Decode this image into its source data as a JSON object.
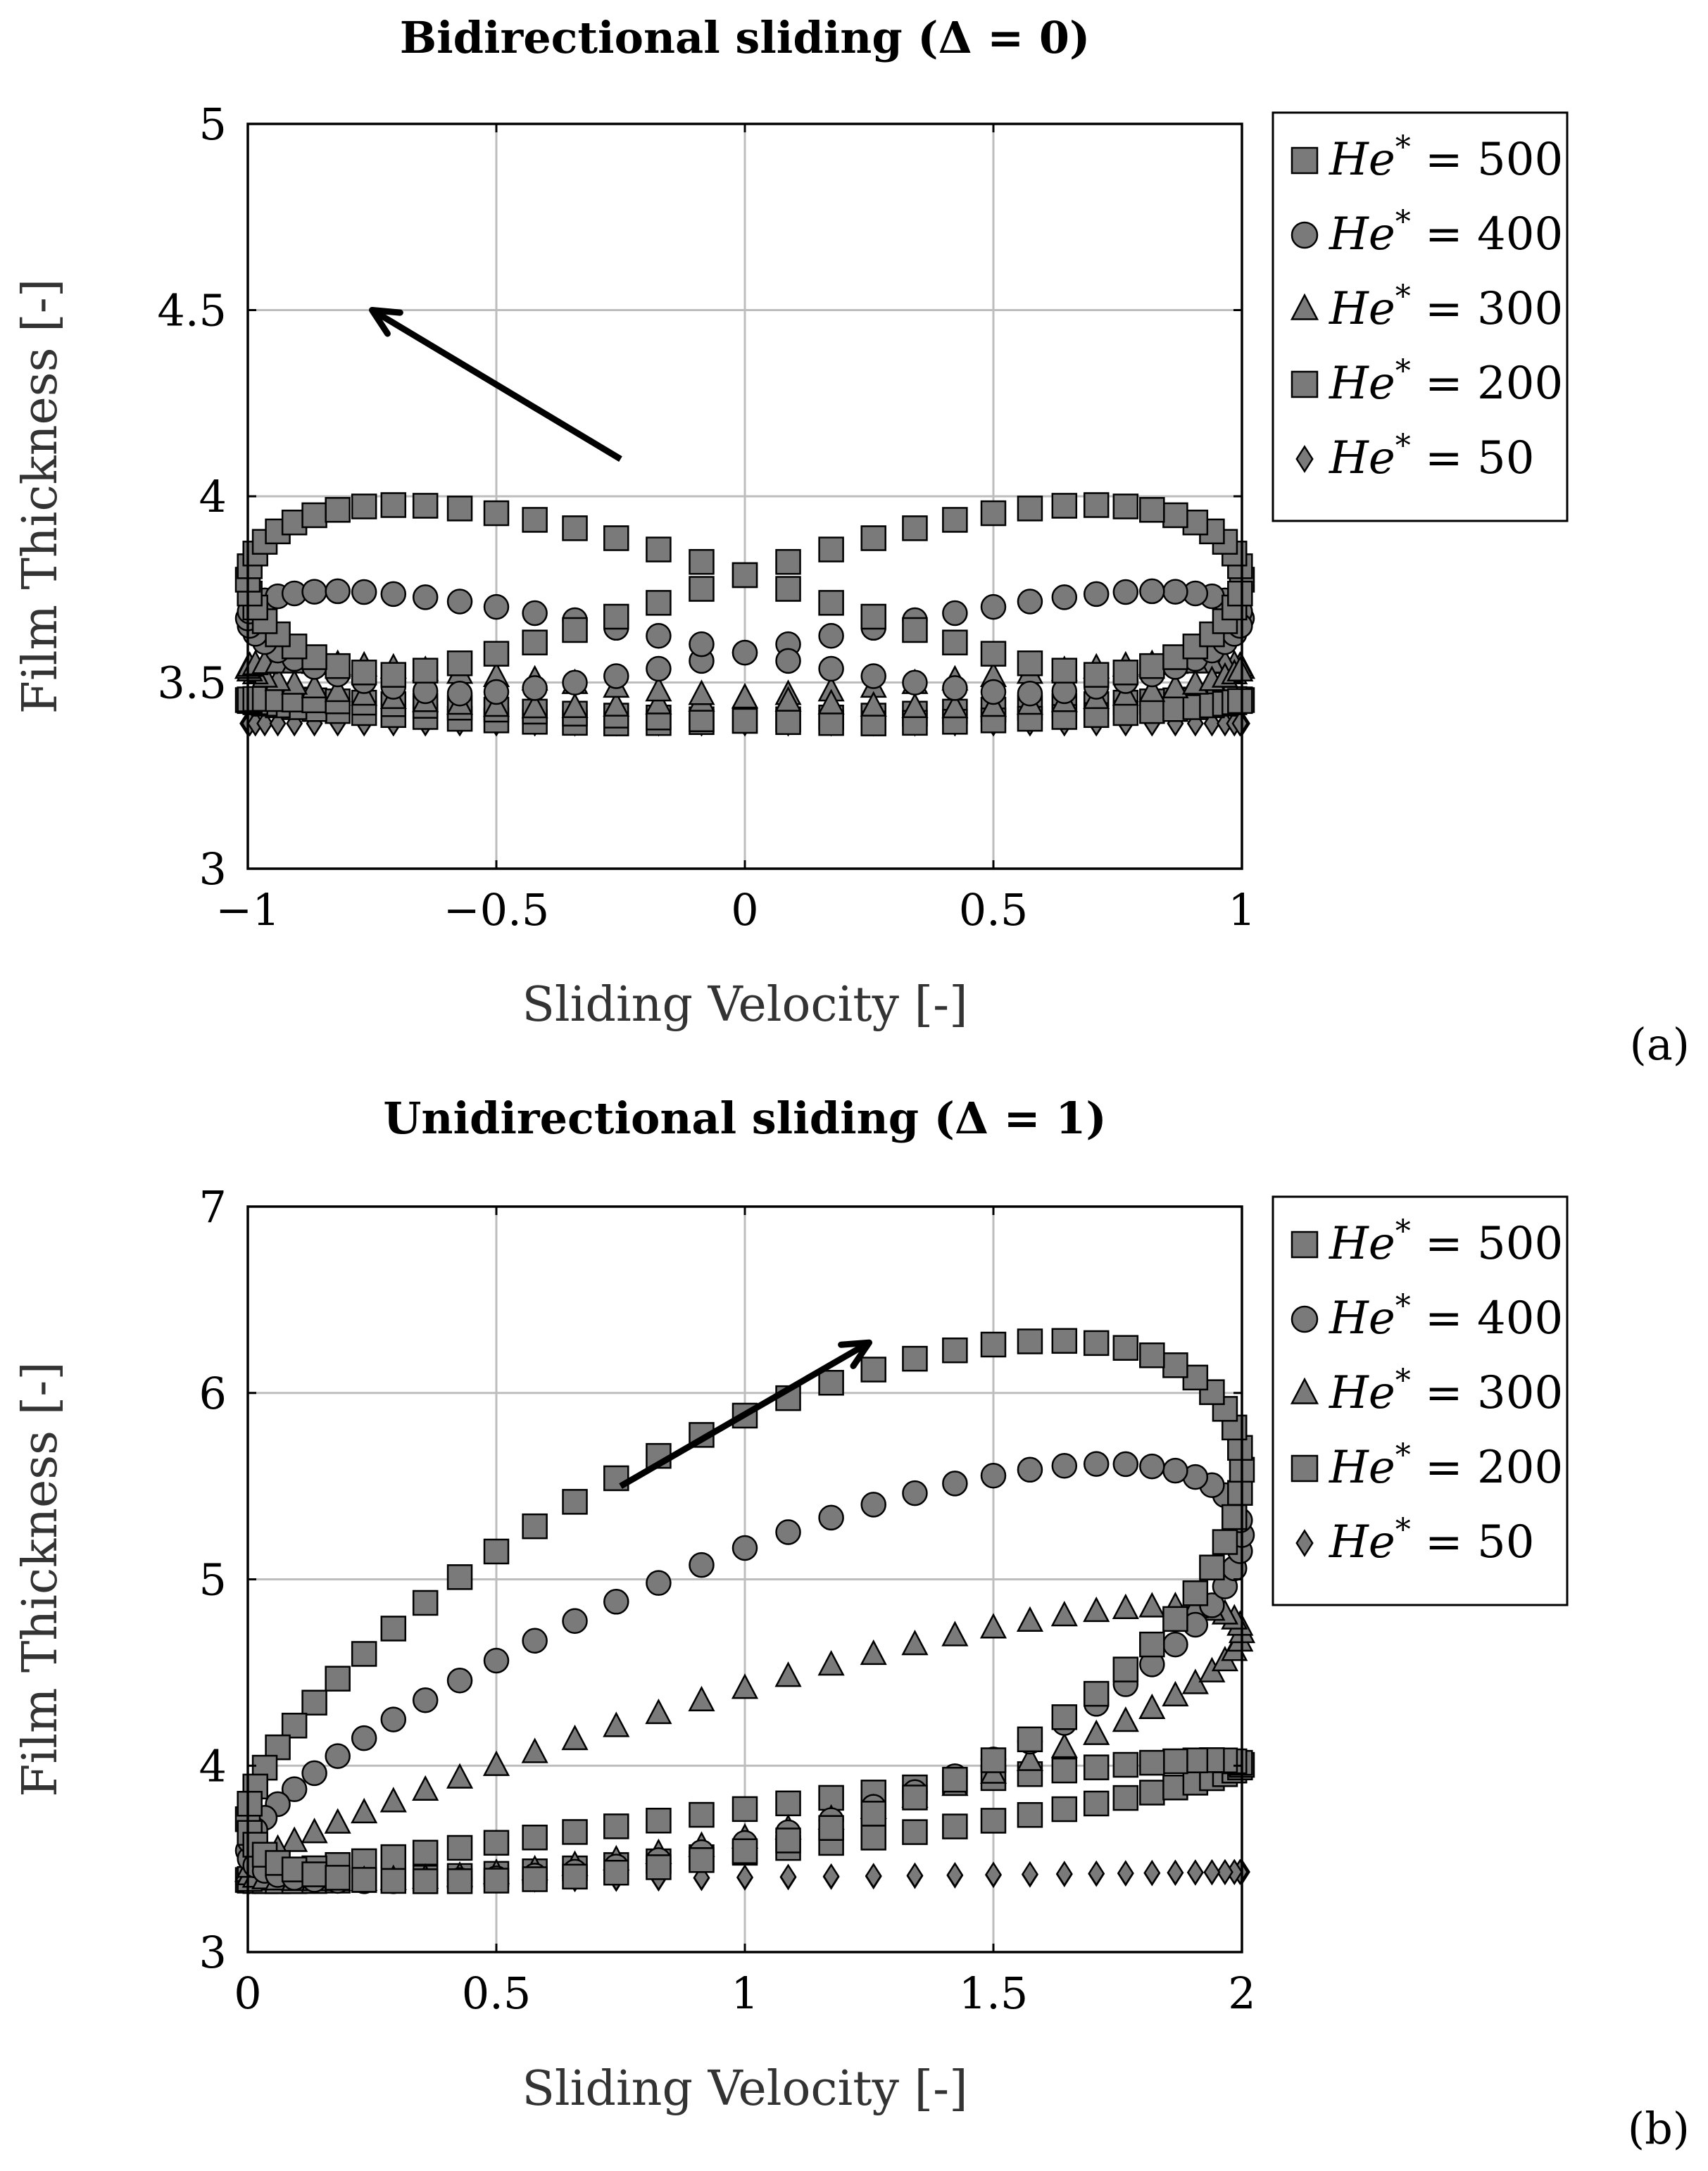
{
  "chart_data": [
    {
      "type": "scatter",
      "title": "Bidirectional sliding (Δ = 0)",
      "xlabel": "Sliding Velocity [-]",
      "ylabel": "Film Thickness [-]",
      "xlim": [
        -1,
        1
      ],
      "ylim": [
        3,
        5
      ],
      "xticks": [
        -1,
        -0.5,
        0,
        0.5,
        1
      ],
      "xtick_labels": [
        "−1",
        "−0.5",
        "0",
        "0.5",
        "1"
      ],
      "yticks": [
        3,
        3.5,
        4,
        4.5,
        5
      ],
      "ytick_labels": [
        "3",
        "3.5",
        "4",
        "4.5",
        "5"
      ],
      "grid": true,
      "legend_position": "right outside",
      "panel_label": "(a)",
      "annotation": "arrow pointing toward negative sliding velocity and increasing film thickness",
      "series": [
        {
          "name_prefix": "He",
          "name_sup": "*",
          "name_value": "= 500",
          "marker": "square",
          "loop": {
            "base": 3.52,
            "amp": 0.83,
            "phi": 0.8,
            "n": 72,
            "bias": 0.0
          }
        },
        {
          "name_prefix": "He",
          "name_sup": "*",
          "name_value": "= 400",
          "marker": "circle",
          "loop": {
            "base": 3.47,
            "amp": 0.5,
            "phi": 0.6,
            "n": 72,
            "bias": 0.0
          }
        },
        {
          "name_prefix": "He",
          "name_sup": "*",
          "name_value": "= 300",
          "marker": "triangle",
          "loop": {
            "base": 3.43,
            "amp": 0.22,
            "phi": 0.4,
            "n": 72,
            "bias": 0.0
          }
        },
        {
          "name_prefix": "He",
          "name_sup": "*",
          "name_value": "= 200",
          "marker": "square",
          "loop": {
            "base": 3.39,
            "amp": 0.12,
            "phi": 0.25,
            "n": 72,
            "bias": 0.0
          }
        },
        {
          "name_prefix": "He",
          "name_sup": "*",
          "name_value": "= 50",
          "marker": "diamond",
          "loop": {
            "base": 3.39,
            "amp": 0.0,
            "phi": 0.0,
            "n": 72,
            "bias": 0.0
          }
        }
      ]
    },
    {
      "type": "scatter",
      "title": "Unidirectional sliding (Δ = 1)",
      "xlabel": "Sliding Velocity [-]",
      "ylabel": "Film Thickness [-]",
      "xlim": [
        0,
        2
      ],
      "ylim": [
        3,
        7
      ],
      "xticks": [
        0,
        0.5,
        1,
        1.5,
        2
      ],
      "xtick_labels": [
        "0",
        "0.5",
        "1",
        "1.5",
        "2"
      ],
      "yticks": [
        3,
        4,
        5,
        6,
        7
      ],
      "ytick_labels": [
        "3",
        "4",
        "5",
        "6",
        "7"
      ],
      "grid": true,
      "legend_position": "right outside",
      "panel_label": "(b)",
      "annotation": "arrow pointing toward increasing sliding velocity and film thickness",
      "series": [
        {
          "name_prefix": "He",
          "name_sup": "*",
          "name_value": "= 500",
          "marker": "square",
          "loop": {
            "base": 3.38,
            "amp": 2.9,
            "phi": 0.9,
            "n": 72,
            "bias": 0.0
          }
        },
        {
          "name_prefix": "He",
          "name_sup": "*",
          "name_value": "= 400",
          "marker": "circle",
          "loop": {
            "base": 3.38,
            "amp": 2.24,
            "phi": 0.75,
            "n": 72,
            "bias": 0.0
          }
        },
        {
          "name_prefix": "He",
          "name_sup": "*",
          "name_value": "= 300",
          "marker": "triangle",
          "loop": {
            "base": 3.38,
            "amp": 1.47,
            "phi": 0.55,
            "n": 72,
            "bias": 0.0
          }
        },
        {
          "name_prefix": "He",
          "name_sup": "*",
          "name_value": "= 200",
          "marker": "square",
          "loop": {
            "base": 3.38,
            "amp": 0.65,
            "phi": 0.35,
            "n": 72,
            "bias": 0.0
          }
        },
        {
          "name_prefix": "He",
          "name_sup": "*",
          "name_value": "= 50",
          "marker": "diamond",
          "loop": {
            "base": 3.38,
            "amp": 0.05,
            "phi": 0.05,
            "n": 72,
            "bias": 0.0
          }
        }
      ]
    }
  ],
  "colors": {
    "marker_fill": "#7a7a7a",
    "marker_stroke": "#000000",
    "grid": "#bdbdbd"
  }
}
